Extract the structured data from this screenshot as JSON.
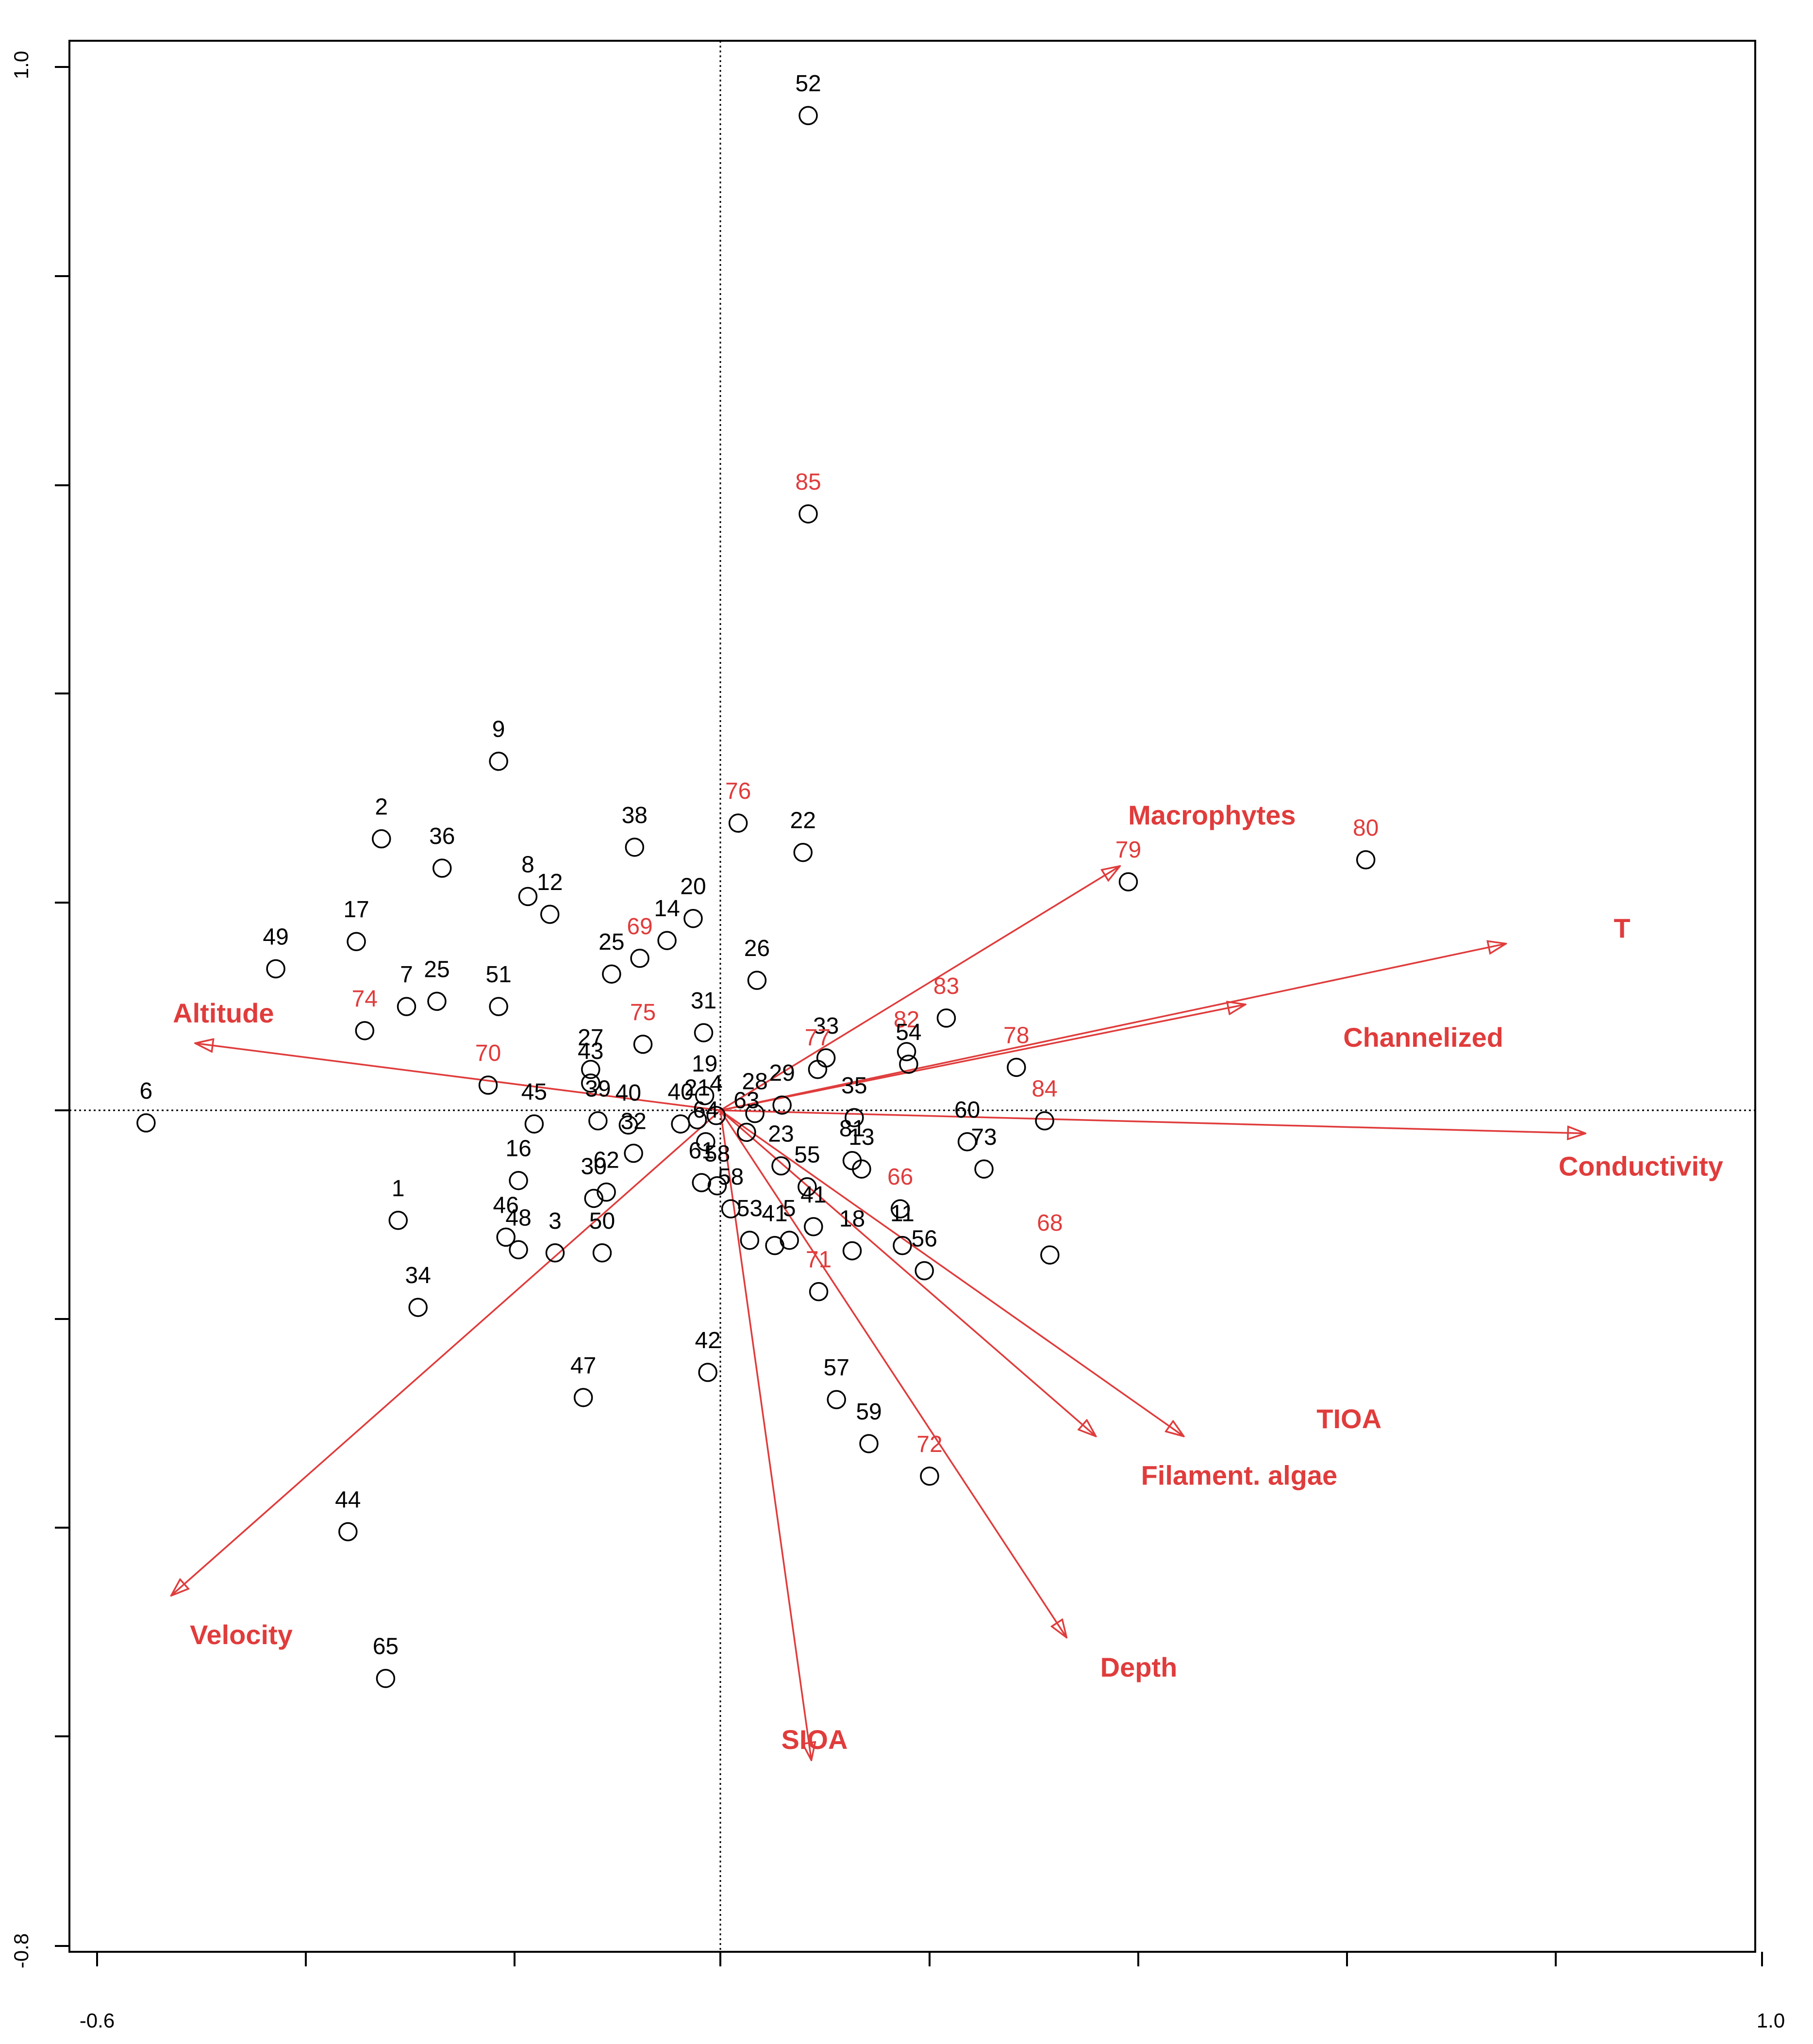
{
  "chart_data": {
    "type": "scatter",
    "title": "",
    "xlabel": "",
    "ylabel": "",
    "xlim": [
      -0.6,
      1.0
    ],
    "ylim": [
      -0.8,
      1.0
    ],
    "x_tick_labels": [
      "-0.6",
      "1.0"
    ],
    "y_tick_labels": [
      "1.0",
      "-0.8"
    ],
    "colors": {
      "sites": "#000000",
      "red": "#e03c3c"
    },
    "points": [
      {
        "x": 0.084,
        "y": 0.949,
        "label": "52",
        "color": "black"
      },
      {
        "x": 0.084,
        "y": 0.569,
        "label": "85",
        "color": "red"
      },
      {
        "x": -0.212,
        "y": 0.333,
        "label": "9",
        "color": "black"
      },
      {
        "x": 0.017,
        "y": 0.274,
        "label": "76",
        "color": "red"
      },
      {
        "x": 0.079,
        "y": 0.246,
        "label": "22",
        "color": "black"
      },
      {
        "x": -0.324,
        "y": 0.259,
        "label": "2",
        "color": "black"
      },
      {
        "x": -0.266,
        "y": 0.231,
        "label": "36",
        "color": "black"
      },
      {
        "x": -0.082,
        "y": 0.251,
        "label": "38",
        "color": "black"
      },
      {
        "x": 0.617,
        "y": 0.239,
        "label": "80",
        "color": "red"
      },
      {
        "x": 0.39,
        "y": 0.218,
        "label": "79",
        "color": "red"
      },
      {
        "x": -0.184,
        "y": 0.204,
        "label": "8",
        "color": "black"
      },
      {
        "x": -0.163,
        "y": 0.187,
        "label": "12",
        "color": "black"
      },
      {
        "x": -0.348,
        "y": 0.161,
        "label": "17",
        "color": "black"
      },
      {
        "x": -0.425,
        "y": 0.135,
        "label": "49",
        "color": "black"
      },
      {
        "x": -0.026,
        "y": 0.183,
        "label": "20",
        "color": "black"
      },
      {
        "x": -0.051,
        "y": 0.162,
        "label": "14",
        "color": "black"
      },
      {
        "x": -0.077,
        "y": 0.145,
        "label": "69",
        "color": "red"
      },
      {
        "x": -0.104,
        "y": 0.13,
        "label": "25",
        "color": "black"
      },
      {
        "x": 0.035,
        "y": 0.124,
        "label": "26",
        "color": "black"
      },
      {
        "x": -0.3,
        "y": 0.099,
        "label": "7",
        "color": "black"
      },
      {
        "x": -0.271,
        "y": 0.104,
        "label": "25",
        "color": "black"
      },
      {
        "x": -0.212,
        "y": 0.099,
        "label": "51",
        "color": "black"
      },
      {
        "x": -0.34,
        "y": 0.076,
        "label": "74",
        "color": "red"
      },
      {
        "x": -0.016,
        "y": 0.074,
        "label": "31",
        "color": "black"
      },
      {
        "x": -0.074,
        "y": 0.063,
        "label": "75",
        "color": "red"
      },
      {
        "x": 0.216,
        "y": 0.088,
        "label": "83",
        "color": "red"
      },
      {
        "x": 0.178,
        "y": 0.056,
        "label": "82",
        "color": "red"
      },
      {
        "x": 0.101,
        "y": 0.05,
        "label": "33",
        "color": "black"
      },
      {
        "x": 0.18,
        "y": 0.044,
        "label": "54",
        "color": "black"
      },
      {
        "x": 0.283,
        "y": 0.041,
        "label": "78",
        "color": "red"
      },
      {
        "x": 0.093,
        "y": 0.039,
        "label": "77",
        "color": "red"
      },
      {
        "x": -0.124,
        "y": 0.039,
        "label": "27",
        "color": "black"
      },
      {
        "x": -0.222,
        "y": 0.024,
        "label": "70",
        "color": "red"
      },
      {
        "x": -0.124,
        "y": 0.026,
        "label": "43",
        "color": "black"
      },
      {
        "x": -0.015,
        "y": 0.014,
        "label": "19",
        "color": "black"
      },
      {
        "x": 0.059,
        "y": 0.005,
        "label": "29",
        "color": "black"
      },
      {
        "x": 0.033,
        "y": -0.003,
        "label": "28",
        "color": "black"
      },
      {
        "x": -0.004,
        "y": -0.005,
        "label": "4",
        "color": "black"
      },
      {
        "x": -0.022,
        "y": -0.009,
        "label": "21",
        "color": "black"
      },
      {
        "x": -0.038,
        "y": -0.013,
        "label": "40",
        "color": "black"
      },
      {
        "x": 0.128,
        "y": -0.007,
        "label": "35",
        "color": "black"
      },
      {
        "x": 0.31,
        "y": -0.01,
        "label": "84",
        "color": "red"
      },
      {
        "x": -0.178,
        "y": -0.013,
        "label": "45",
        "color": "black"
      },
      {
        "x": -0.117,
        "y": -0.01,
        "label": "39",
        "color": "black"
      },
      {
        "x": -0.088,
        "y": -0.014,
        "label": "40",
        "color": "black"
      },
      {
        "x": -0.549,
        "y": -0.012,
        "label": "6",
        "color": "black"
      },
      {
        "x": 0.025,
        "y": -0.021,
        "label": "63",
        "color": "black"
      },
      {
        "x": -0.014,
        "y": -0.03,
        "label": "64",
        "color": "black"
      },
      {
        "x": 0.236,
        "y": -0.03,
        "label": "60",
        "color": "black"
      },
      {
        "x": 0.126,
        "y": -0.048,
        "label": "81",
        "color": "black"
      },
      {
        "x": 0.135,
        "y": -0.056,
        "label": "13",
        "color": "black"
      },
      {
        "x": 0.252,
        "y": -0.056,
        "label": "73",
        "color": "black"
      },
      {
        "x": -0.083,
        "y": -0.041,
        "label": "32",
        "color": "black"
      },
      {
        "x": 0.058,
        "y": -0.053,
        "label": "23",
        "color": "black"
      },
      {
        "x": -0.193,
        "y": -0.067,
        "label": "16",
        "color": "black"
      },
      {
        "x": -0.018,
        "y": -0.069,
        "label": "61",
        "color": "black"
      },
      {
        "x": -0.003,
        "y": -0.072,
        "label": "58",
        "color": "black"
      },
      {
        "x": 0.083,
        "y": -0.073,
        "label": "55",
        "color": "black"
      },
      {
        "x": -0.109,
        "y": -0.078,
        "label": "62",
        "color": "black"
      },
      {
        "x": -0.121,
        "y": -0.084,
        "label": "30",
        "color": "black"
      },
      {
        "x": 0.01,
        "y": -0.094,
        "label": "58",
        "color": "black"
      },
      {
        "x": 0.172,
        "y": -0.094,
        "label": "66",
        "color": "red"
      },
      {
        "x": -0.308,
        "y": -0.105,
        "label": "1",
        "color": "black"
      },
      {
        "x": 0.089,
        "y": -0.111,
        "label": "41",
        "color": "black"
      },
      {
        "x": -0.205,
        "y": -0.121,
        "label": "46",
        "color": "black"
      },
      {
        "x": 0.066,
        "y": -0.124,
        "label": "5",
        "color": "black"
      },
      {
        "x": 0.028,
        "y": -0.124,
        "label": "53",
        "color": "black"
      },
      {
        "x": 0.174,
        "y": -0.129,
        "label": "11",
        "color": "black"
      },
      {
        "x": 0.052,
        "y": -0.129,
        "label": "41",
        "color": "black"
      },
      {
        "x": -0.193,
        "y": -0.133,
        "label": "48",
        "color": "black"
      },
      {
        "x": -0.158,
        "y": -0.136,
        "label": "3",
        "color": "black"
      },
      {
        "x": -0.113,
        "y": -0.136,
        "label": "50",
        "color": "black"
      },
      {
        "x": 0.126,
        "y": -0.134,
        "label": "18",
        "color": "black"
      },
      {
        "x": 0.315,
        "y": -0.138,
        "label": "68",
        "color": "red"
      },
      {
        "x": 0.195,
        "y": -0.153,
        "label": "56",
        "color": "black"
      },
      {
        "x": 0.094,
        "y": -0.173,
        "label": "71",
        "color": "red"
      },
      {
        "x": -0.289,
        "y": -0.188,
        "label": "34",
        "color": "black"
      },
      {
        "x": -0.012,
        "y": -0.25,
        "label": "42",
        "color": "black"
      },
      {
        "x": 0.111,
        "y": -0.276,
        "label": "57",
        "color": "black"
      },
      {
        "x": -0.131,
        "y": -0.274,
        "label": "47",
        "color": "black"
      },
      {
        "x": 0.142,
        "y": -0.318,
        "label": "59",
        "color": "black"
      },
      {
        "x": 0.2,
        "y": -0.349,
        "label": "72",
        "color": "red"
      },
      {
        "x": -0.356,
        "y": -0.402,
        "label": "44",
        "color": "black"
      },
      {
        "x": -0.32,
        "y": -0.542,
        "label": "65",
        "color": "black"
      }
    ],
    "arrows": [
      {
        "name": "Macrophytes",
        "x": 0.382,
        "y": 0.233
      },
      {
        "name": "T",
        "x": 0.751,
        "y": 0.159
      },
      {
        "name": "Channelized",
        "x": 0.502,
        "y": 0.101
      },
      {
        "name": "Conductivity",
        "x": 0.827,
        "y": -0.022
      },
      {
        "name": "Altitude",
        "x": -0.502,
        "y": 0.064
      },
      {
        "name": "Velocity",
        "x": -0.525,
        "y": -0.463
      },
      {
        "name": "TIOA",
        "x": 0.443,
        "y": -0.311
      },
      {
        "name": "Filament. algae",
        "x": 0.359,
        "y": -0.311
      },
      {
        "name": "Depth",
        "x": 0.331,
        "y": -0.503
      },
      {
        "name": "SIOA",
        "x": 0.087,
        "y": -0.62
      }
    ]
  }
}
